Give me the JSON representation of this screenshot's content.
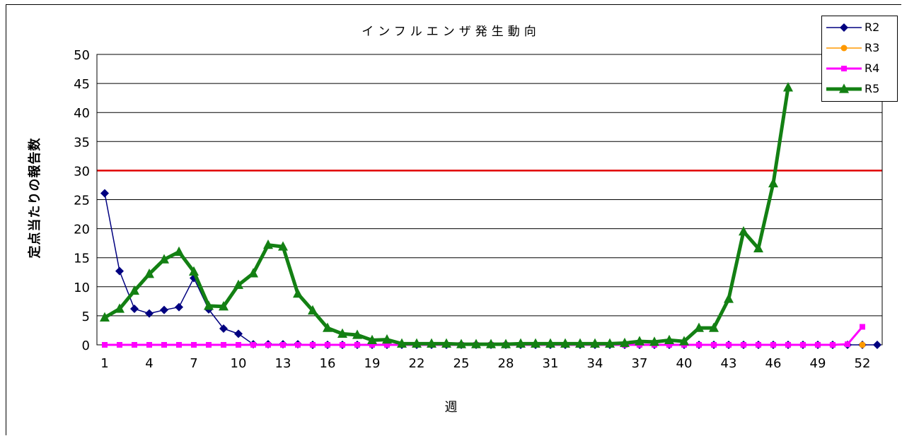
{
  "chart_data": {
    "type": "line",
    "title": "インフルエンザ発生動向",
    "xlabel": "週",
    "ylabel": "定点当たりの報告数",
    "ylim": [
      0,
      50
    ],
    "yticks": [
      0,
      5,
      10,
      15,
      20,
      25,
      30,
      35,
      40,
      45,
      50
    ],
    "xlim": [
      1,
      53
    ],
    "xticks": [
      1,
      4,
      7,
      10,
      13,
      16,
      19,
      22,
      25,
      28,
      31,
      34,
      37,
      40,
      43,
      46,
      49,
      52
    ],
    "grid": true,
    "legend_position": "top-right",
    "reference_line": {
      "value": 30,
      "color": "#e00000"
    },
    "series": [
      {
        "name": "R2",
        "color": "#000080",
        "marker": "diamond",
        "line_width": 1.5,
        "x": [
          1,
          2,
          3,
          4,
          5,
          6,
          7,
          8,
          9,
          10,
          11,
          12,
          13,
          14,
          15,
          16,
          17,
          18,
          19,
          20,
          21,
          22,
          23,
          24,
          25,
          26,
          27,
          28,
          29,
          30,
          31,
          32,
          33,
          34,
          35,
          36,
          37,
          38,
          39,
          40,
          41,
          42,
          43,
          44,
          45,
          46,
          47,
          48,
          49,
          50,
          51,
          52,
          53
        ],
        "values": [
          26.1,
          12.7,
          6.2,
          5.4,
          6.0,
          6.5,
          11.5,
          6.1,
          2.8,
          1.9,
          0.1,
          0.1,
          0.1,
          0.1,
          0,
          0,
          0,
          0,
          0,
          0,
          0,
          0,
          0,
          0,
          0,
          0,
          0,
          0,
          0,
          0,
          0,
          0,
          0,
          0,
          0,
          0,
          0,
          0,
          0,
          0,
          0,
          0,
          0,
          0,
          0,
          0,
          0,
          0,
          0,
          0,
          0,
          0,
          0
        ]
      },
      {
        "name": "R3",
        "color": "#ff9900",
        "marker": "circle",
        "line_width": 1.5,
        "x": [
          52
        ],
        "values": [
          0
        ]
      },
      {
        "name": "R4",
        "color": "#ff00ff",
        "marker": "square",
        "line_width": 3,
        "x": [
          1,
          2,
          3,
          4,
          5,
          6,
          7,
          8,
          9,
          10,
          11,
          12,
          13,
          14,
          15,
          16,
          17,
          18,
          19,
          20,
          21,
          22,
          23,
          24,
          25,
          26,
          27,
          28,
          29,
          30,
          31,
          32,
          33,
          34,
          35,
          36,
          37,
          38,
          39,
          40,
          41,
          42,
          43,
          44,
          45,
          46,
          47,
          48,
          49,
          50,
          51,
          52
        ],
        "values": [
          0,
          0,
          0,
          0,
          0,
          0,
          0,
          0,
          0,
          0,
          0,
          0,
          0,
          0,
          0,
          0,
          0,
          0,
          0,
          0,
          0,
          0,
          0,
          0,
          0,
          0,
          0,
          0,
          0,
          0,
          0,
          0,
          0,
          0,
          0,
          0,
          0,
          0,
          0,
          0,
          0,
          0,
          0,
          0,
          0,
          0,
          0,
          0,
          0,
          0,
          0.1,
          3.1
        ]
      },
      {
        "name": "R5",
        "color": "#138013",
        "marker": "triangle",
        "line_width": 5,
        "x": [
          1,
          2,
          3,
          4,
          5,
          6,
          7,
          8,
          9,
          10,
          11,
          12,
          13,
          14,
          15,
          16,
          17,
          18,
          19,
          20,
          21,
          22,
          23,
          24,
          25,
          26,
          27,
          28,
          29,
          30,
          31,
          32,
          33,
          34,
          35,
          36,
          37,
          38,
          39,
          40,
          41,
          42,
          43,
          44,
          45,
          46,
          47
        ],
        "values": [
          4.7,
          6.2,
          9.3,
          12.2,
          14.7,
          16.0,
          12.6,
          6.7,
          6.6,
          10.3,
          12.3,
          17.2,
          16.9,
          8.8,
          5.9,
          2.9,
          1.9,
          1.7,
          0.8,
          0.9,
          0.2,
          0.2,
          0.2,
          0.2,
          0.1,
          0.1,
          0.1,
          0.1,
          0.2,
          0.2,
          0.2,
          0.2,
          0.2,
          0.2,
          0.2,
          0.3,
          0.6,
          0.5,
          0.8,
          0.6,
          2.9,
          2.9,
          7.9,
          19.5,
          16.6,
          27.8,
          44.3
        ]
      }
    ]
  }
}
